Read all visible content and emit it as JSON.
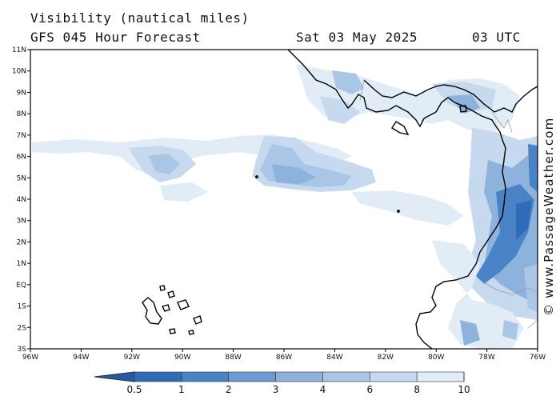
{
  "header": {
    "title": "Visibility (nautical miles)",
    "model": "GFS 045 Hour Forecast",
    "date": "Sat 03 May 2025",
    "time": "03 UTC"
  },
  "credit": "© www.PassageWeather.com",
  "axes": {
    "lon_labels": [
      "96W",
      "94W",
      "92W",
      "90W",
      "88W",
      "86W",
      "84W",
      "82W",
      "80W",
      "78W",
      "76W"
    ],
    "lat_labels": [
      "11N",
      "10N",
      "9N",
      "8N",
      "7N",
      "6N",
      "5N",
      "4N",
      "3N",
      "2N",
      "1N",
      "EQ",
      "1S",
      "2S",
      "3S"
    ]
  },
  "colorbar": {
    "labels": [
      "0.5",
      "1",
      "2",
      "3",
      "4",
      "6",
      "8",
      "10"
    ],
    "colors": [
      "#2f6cb8",
      "#4a82c6",
      "#6b9bd2",
      "#8db2dc",
      "#aac6e6",
      "#c7d9ef",
      "#e2ecf7",
      "#ffffff"
    ]
  },
  "colors": {
    "land_outline": "#000000",
    "border": "#999999",
    "fog_dark": "#4a82c6",
    "fog_mid": "#8db2dc",
    "fog_light": "#c7d9ef"
  }
}
